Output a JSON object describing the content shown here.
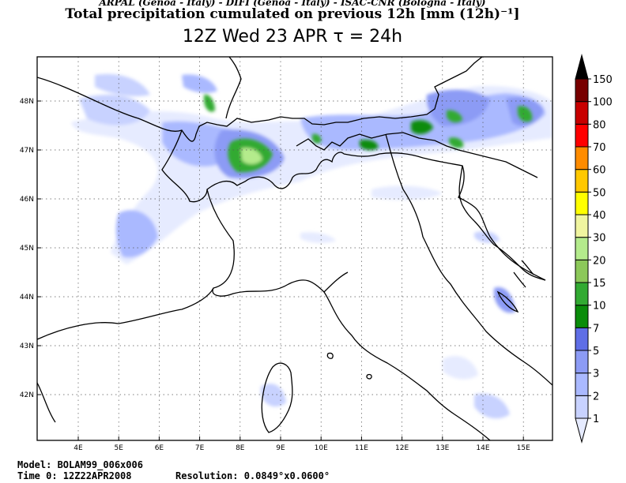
{
  "header": {
    "credit": "ARPAL (Genoa - Italy)  -  DIFI (Genoa - Italy)  -  ISAC-CNR (Bologna - Italy)",
    "title": "Total precipitation cumulated on previous 12h [mm (12h)⁻¹]",
    "subtitle": "12Z Wed 23 APR  τ = 24h"
  },
  "map": {
    "longitude_labels": [
      "4E",
      "5E",
      "6E",
      "7E",
      "8E",
      "9E",
      "10E",
      "11E",
      "12E",
      "13E",
      "14E",
      "15E"
    ],
    "latitude_labels": [
      "48N",
      "47N",
      "46N",
      "45N",
      "44N",
      "43N",
      "42N"
    ],
    "gridlines": true
  },
  "colorbar": {
    "levels": [
      "1",
      "2",
      "3",
      "5",
      "7",
      "10",
      "15",
      "20",
      "30",
      "40",
      "50",
      "60",
      "70",
      "80",
      "100",
      "150"
    ],
    "colors": [
      "#e6ebff",
      "#c8d2ff",
      "#aab9ff",
      "#8c9bf5",
      "#5f6ee6",
      "#0a8c0a",
      "#32aa32",
      "#8cc85a",
      "#b4eb8c",
      "#f0f5a0",
      "#ffff00",
      "#ffc800",
      "#ff8c00",
      "#ff0000",
      "#c80000",
      "#780000",
      "#000000"
    ]
  },
  "footer": {
    "model": "Model: BOLAM99_006x006",
    "time": "Time 0: 12Z22APR2008",
    "resolution": "Resolution: 0.0849°x0.0600°"
  }
}
